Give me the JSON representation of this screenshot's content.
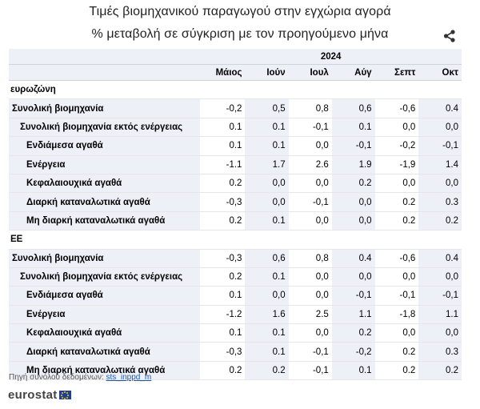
{
  "title_line1": "Τιμές βιομηχανικού παραγωγού στην εγχώρια αγορά",
  "title_line2": "% μεταβολή σε σύγκριση με τον προηγούμενο μήνα",
  "share_icon": "share-icon",
  "table": {
    "year": "2024",
    "columns": [
      "Μάιος",
      "Ιούν",
      "Ιουλ",
      "Αύγ",
      "Σεπτ",
      "Οκτ"
    ],
    "groups": [
      {
        "name": "ευρωζώνη",
        "rows": [
          {
            "label": "Συνολική βιομηχανία",
            "values": [
              "-0,2",
              "0,5",
              "0,8",
              "0,6",
              "-0,6",
              "0.4"
            ]
          },
          {
            "label": "Συνολική βιομηχανία εκτός ενέργειας",
            "values": [
              "0.1",
              "0.1",
              "-0,1",
              "0.1",
              "0,0",
              "0,0"
            ]
          },
          {
            "label": "Ενδιάμεσα αγαθά",
            "values": [
              "0.1",
              "0.1",
              "0,0",
              "-0,1",
              "-0,2",
              "-0,1"
            ]
          },
          {
            "label": "Ενέργεια",
            "values": [
              "-1.1",
              "1.7",
              "2.6",
              "1.9",
              "-1,9",
              "1.4"
            ]
          },
          {
            "label": "Κεφαλαιουχικά αγαθά",
            "values": [
              "0.2",
              "0,0",
              "0,0",
              "0.2",
              "0,0",
              "0,0"
            ]
          },
          {
            "label": "Διαρκή καταναλωτικά αγαθά",
            "values": [
              "-0,3",
              "0,0",
              "-0,1",
              "0,0",
              "0.2",
              "0.3"
            ]
          },
          {
            "label": "Μη διαρκή καταναλωτικά αγαθά",
            "values": [
              "0.2",
              "0.1",
              "0,0",
              "0,0",
              "0.2",
              "0.2"
            ]
          }
        ]
      },
      {
        "name": "ΕΕ",
        "rows": [
          {
            "label": "Συνολική βιομηχανία",
            "values": [
              "-0,3",
              "0,6",
              "0,8",
              "0.4",
              "-0,6",
              "0.4"
            ]
          },
          {
            "label": "Συνολική βιομηχανία εκτός ενέργειας",
            "values": [
              "0.2",
              "0.1",
              "0,0",
              "0,0",
              "0,0",
              "0,0"
            ]
          },
          {
            "label": "Ενδιάμεσα αγαθά",
            "values": [
              "0.1",
              "0,0",
              "0,0",
              "-0,1",
              "-0,1",
              "-0,1"
            ]
          },
          {
            "label": "Ενέργεια",
            "values": [
              "-1.2",
              "1.6",
              "2.5",
              "1.1",
              "-1,8",
              "1.1"
            ]
          },
          {
            "label": "Κεφαλαιουχικά αγαθά",
            "values": [
              "0.1",
              "0.1",
              "0,0",
              "0.2",
              "0,0",
              "0,0"
            ]
          },
          {
            "label": "Διαρκή καταναλωτικά αγαθά",
            "values": [
              "-0,3",
              "0.1",
              "-0,1",
              "-0,2",
              "0.2",
              "0.3"
            ]
          },
          {
            "label": "Μη διαρκή καταναλωτικά αγαθά",
            "values": [
              "0.2",
              "0.2",
              "-0,1",
              "0.1",
              "0.2",
              "0.2"
            ]
          }
        ]
      }
    ]
  },
  "source": {
    "prefix": "Πηγή συνόλου δεδομένων:",
    "link": "sts_inppd_m"
  },
  "logo_text": "eurostat",
  "colors": {
    "row_shade": "#eef0f8",
    "link": "#1d5aa8",
    "flag_blue": "#1f3f95",
    "flag_star": "#f4d000"
  }
}
